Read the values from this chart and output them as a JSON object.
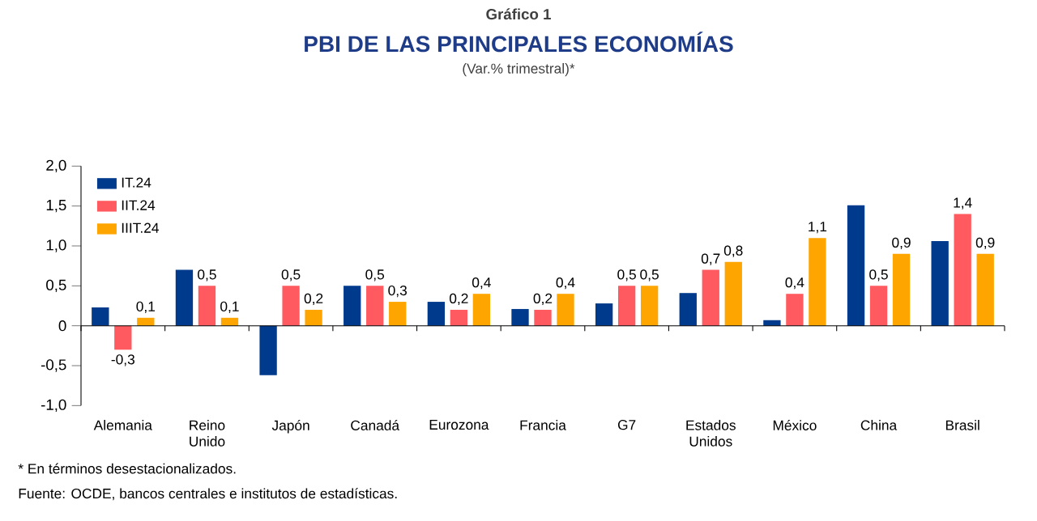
{
  "chart_data": {
    "type": "bar",
    "title": "PBI DE LAS PRINCIPALES ECONOMÍAS",
    "subtitle": "(Var.% trimestral)*",
    "annotations": [
      "Gráfico 1",
      "* En términos desestacionalizados.",
      "Fuente: OCDE, bancos centrales e institutos de estadísticas."
    ],
    "categories": [
      "Alemania",
      "Reino Unido",
      "Japón",
      "Canadá",
      "Eurozona",
      "Francia",
      "G7",
      "Estados Unidos",
      "México",
      "China",
      "Brasil"
    ],
    "series": [
      {
        "name": "IT.24",
        "color": "#003a8c",
        "values": [
          0.23,
          0.7,
          -0.62,
          0.5,
          0.3,
          0.21,
          0.28,
          0.41,
          0.07,
          1.51,
          1.06
        ]
      },
      {
        "name": "IIT.24",
        "color": "#ff5a5f",
        "values": [
          -0.3,
          0.5,
          0.5,
          0.5,
          0.2,
          0.2,
          0.5,
          0.7,
          0.4,
          0.5,
          1.4
        ],
        "value_labels": [
          "-0,3",
          "0,5",
          "0,5",
          "0,5",
          "0,2",
          "0,2",
          "0,5",
          "0,7",
          "0,4",
          "0,5",
          "1,4"
        ]
      },
      {
        "name": "IIIT.24",
        "color": "#ffa500",
        "values": [
          0.1,
          0.1,
          0.2,
          0.3,
          0.4,
          0.4,
          0.5,
          0.8,
          1.1,
          0.9,
          0.9
        ],
        "value_labels": [
          "0,1",
          "0,1",
          "0,2",
          "0,3",
          "0,4",
          "0,4",
          "0,5",
          "0,8",
          "1,1",
          "0,9",
          "0,9"
        ]
      }
    ],
    "ylim": [
      -1,
      2
    ],
    "yticks": [
      {
        "value": -1,
        "label": "-1,0"
      },
      {
        "value": -0.5,
        "label": "-0,5"
      },
      {
        "value": 0,
        "label": "0"
      },
      {
        "value": 0.5,
        "label": "0,5"
      },
      {
        "value": 1,
        "label": "1,0"
      },
      {
        "value": 1.5,
        "label": "1,5"
      },
      {
        "value": 2,
        "label": "2,0"
      }
    ],
    "legend": "top left"
  }
}
